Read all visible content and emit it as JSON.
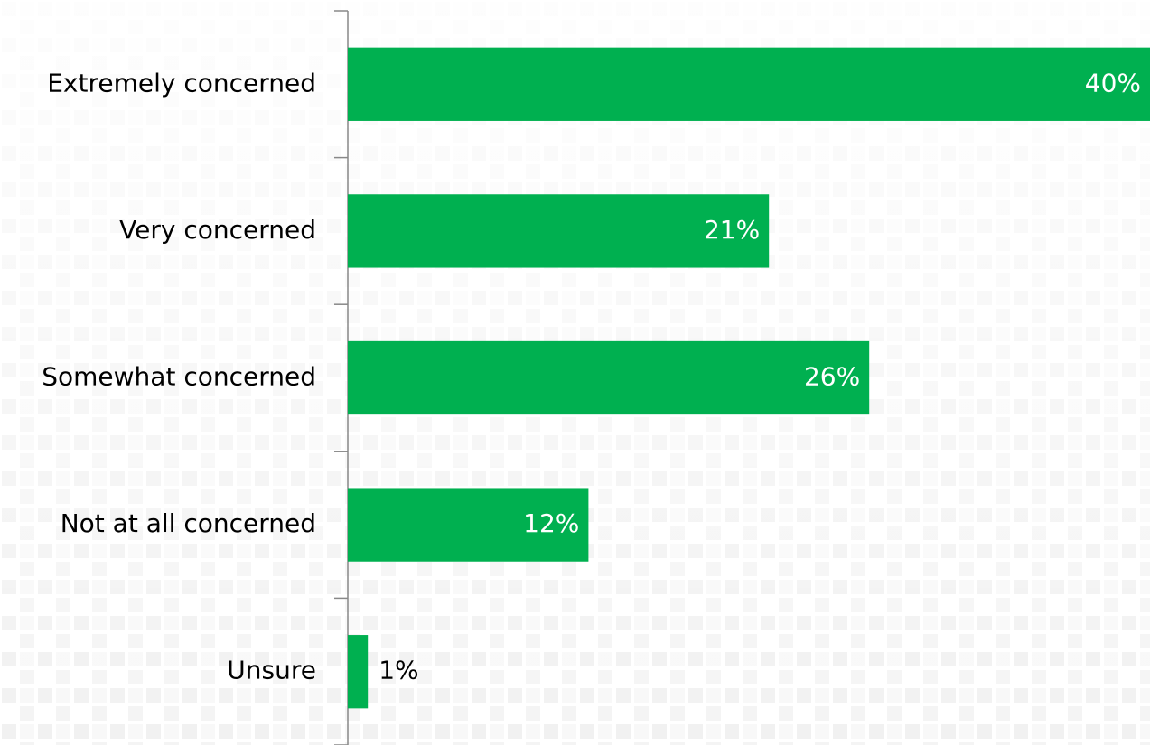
{
  "chart_data": {
    "type": "barh",
    "categories": [
      "Extremely concerned",
      "Very concerned",
      "Somewhat concerned",
      "Not at all concerned",
      "Unsure"
    ],
    "values": [
      40,
      21,
      26,
      12,
      1
    ],
    "value_labels": [
      "40%",
      "21%",
      "26%",
      "12%",
      "1%"
    ],
    "color": "#00b050",
    "xlim": [
      0,
      40
    ]
  }
}
